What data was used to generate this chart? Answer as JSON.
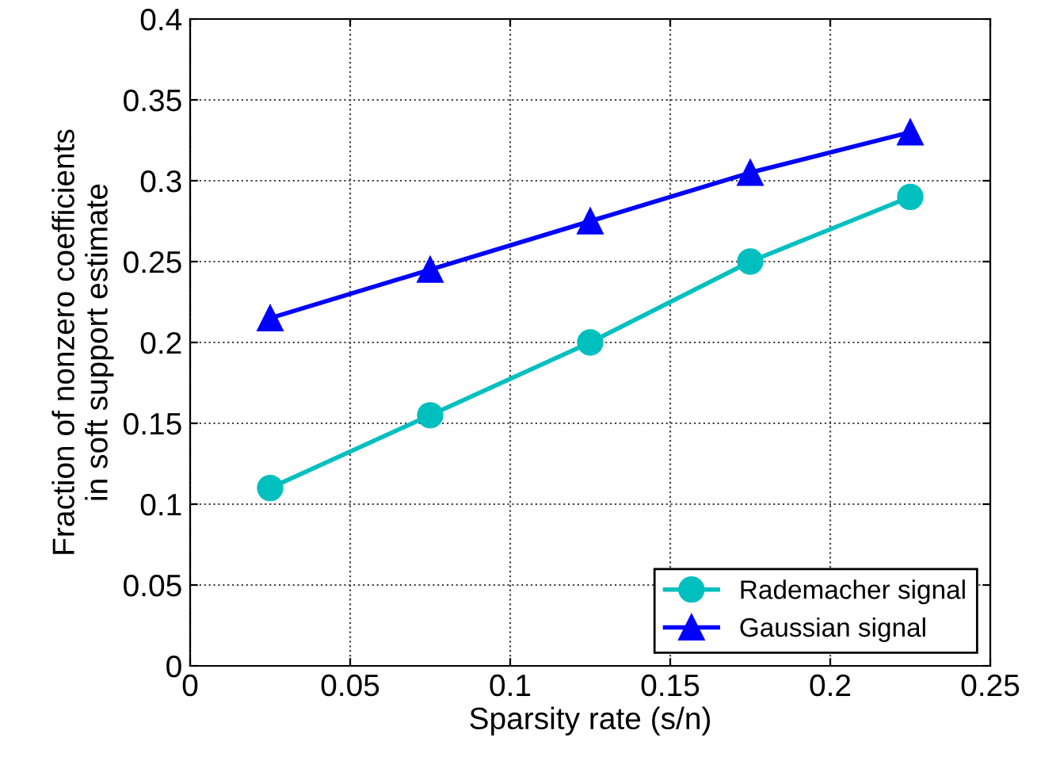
{
  "chart_data": {
    "type": "line",
    "xlabel": "Sparsity rate (s/n)",
    "ylabel": "Fraction of nonzero coefficients\nin soft support estimate",
    "x": [
      0.025,
      0.075,
      0.125,
      0.175,
      0.225
    ],
    "series": [
      {
        "name": "Rademacher signal",
        "color": "#00bfbf",
        "marker": "circle",
        "values": [
          0.11,
          0.155,
          0.2,
          0.25,
          0.29
        ]
      },
      {
        "name": "Gaussian signal",
        "color": "#0000ff",
        "marker": "triangle",
        "values": [
          0.215,
          0.245,
          0.275,
          0.305,
          0.33
        ]
      }
    ],
    "xlim": [
      0,
      0.25
    ],
    "xticks": [
      0,
      0.05,
      0.1,
      0.15,
      0.2,
      0.25
    ],
    "ylim": [
      0,
      0.4
    ],
    "yticks": [
      0,
      0.05,
      0.1,
      0.15,
      0.2,
      0.25,
      0.3,
      0.35,
      0.4
    ],
    "grid": true,
    "legend": "bottom right",
    "line_style": "solid"
  }
}
